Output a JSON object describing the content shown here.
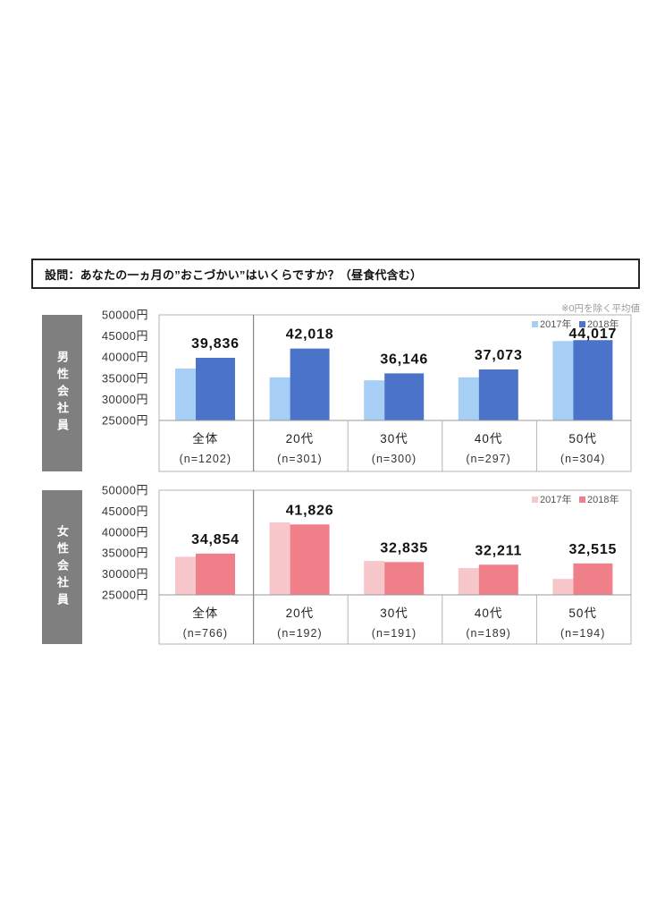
{
  "question": "設問：あなたの一ヵ月の”おこづかい”はいくらですか？（昼食代含む）",
  "note": "※0円を除く平均値",
  "chart_data": [
    {
      "type": "bar",
      "panel_label": "男性会社員",
      "categories": [
        "全体",
        "20代",
        "30代",
        "40代",
        "50代"
      ],
      "sample_sizes": [
        "(n=1202)",
        "(n=301)",
        "(n=300)",
        "(n=297)",
        "(n=304)"
      ],
      "ylim": [
        25000,
        50000
      ],
      "yticks": [
        50000,
        45000,
        40000,
        35000,
        30000,
        25000
      ],
      "ytick_unit": "円",
      "grid": false,
      "legend": "top-right",
      "series": [
        {
          "name": "2017年",
          "color": "#a7cff5",
          "data_labels": false,
          "values": [
            37300,
            35200,
            34500,
            35200,
            43800
          ]
        },
        {
          "name": "2018年",
          "color": "#4a73c9",
          "data_labels": true,
          "values": [
            39836,
            42018,
            36146,
            37073,
            44017
          ]
        }
      ]
    },
    {
      "type": "bar",
      "panel_label": "女性会社員",
      "categories": [
        "全体",
        "20代",
        "30代",
        "40代",
        "50代"
      ],
      "sample_sizes": [
        "(n=766)",
        "(n=192)",
        "(n=191)",
        "(n=189)",
        "(n=194)"
      ],
      "ylim": [
        25000,
        50000
      ],
      "yticks": [
        50000,
        45000,
        40000,
        35000,
        30000,
        25000
      ],
      "ytick_unit": "円",
      "grid": false,
      "legend": "top-right",
      "series": [
        {
          "name": "2017年",
          "color": "#f8c7cb",
          "data_labels": false,
          "values": [
            34100,
            42300,
            33100,
            31400,
            28800
          ]
        },
        {
          "name": "2018年",
          "color": "#ef7f89",
          "data_labels": true,
          "values": [
            34854,
            41826,
            32835,
            32211,
            32515
          ]
        }
      ]
    }
  ]
}
